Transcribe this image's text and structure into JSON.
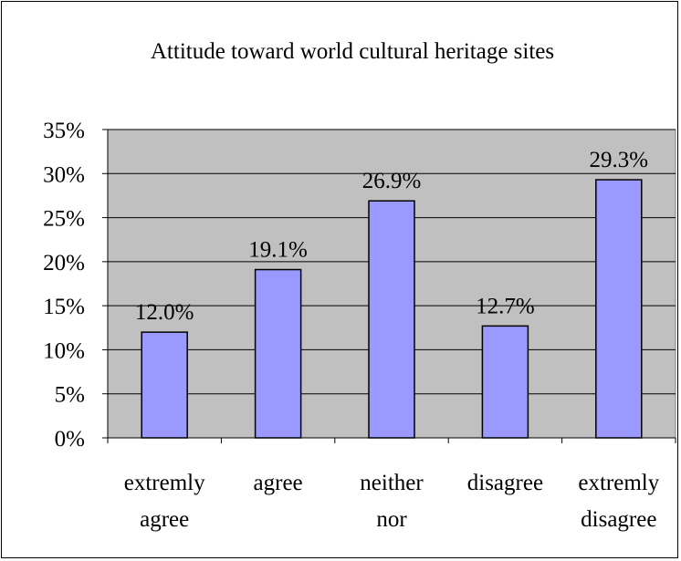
{
  "chart_data": {
    "type": "bar",
    "title": "Attitude toward world cultural heritage sites",
    "categories": [
      [
        "extremly",
        "agree"
      ],
      [
        "agree"
      ],
      [
        "neither",
        "nor"
      ],
      [
        "disagree"
      ],
      [
        "extremly",
        "disagree"
      ]
    ],
    "values": [
      12.0,
      19.1,
      26.9,
      12.7,
      29.3
    ],
    "data_labels": [
      "12.0%",
      "19.1%",
      "26.9%",
      "12.7%",
      "29.3%"
    ],
    "ylim": [
      0,
      35
    ],
    "yticks": [
      0,
      5,
      10,
      15,
      20,
      25,
      30,
      35
    ],
    "ytick_labels": [
      "0%",
      "5%",
      "10%",
      "15%",
      "20%",
      "25%",
      "30%",
      "35%"
    ],
    "xlabel": "",
    "ylabel": "",
    "grid": true,
    "legend": "none",
    "colors": {
      "bar_fill": "#9999ff",
      "bar_stroke": "#000000",
      "plot_background": "#c0c0c0",
      "gridline": "#000000"
    }
  }
}
